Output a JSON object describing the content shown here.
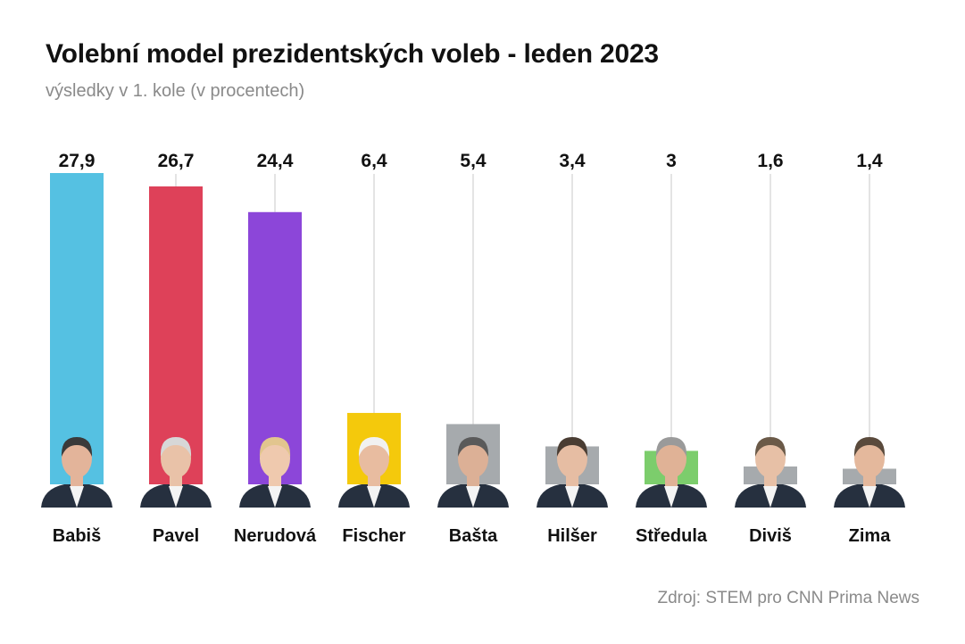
{
  "header": {
    "title": "Volební model prezidentských voleb - leden 2023",
    "subtitle": "výsledky v 1. kole (v procentech)"
  },
  "footer": {
    "source": "Zdroj: STEM pro CNN Prima News"
  },
  "chart_data": {
    "type": "bar",
    "categories": [
      "Babiš",
      "Pavel",
      "Nerudová",
      "Fischer",
      "Bašta",
      "Hilšer",
      "Středula",
      "Diviš",
      "Zima"
    ],
    "values": [
      27.9,
      26.7,
      24.4,
      6.4,
      5.4,
      3.4,
      3,
      1.6,
      1.4
    ],
    "value_labels": [
      "27,9",
      "26,7",
      "24,4",
      "6,4",
      "5,4",
      "3,4",
      "3",
      "1,6",
      "1,4"
    ],
    "colors": [
      "#55c1e2",
      "#de4159",
      "#8c46d9",
      "#f4c90c",
      "#a6aaad",
      "#a6aaad",
      "#7ccd6c",
      "#a6aaad",
      "#a6aaad"
    ],
    "ylim": [
      0,
      27.9
    ],
    "grid": false,
    "legend": "none",
    "bar_decoration": "portrait photo of each candidate at bar base"
  }
}
